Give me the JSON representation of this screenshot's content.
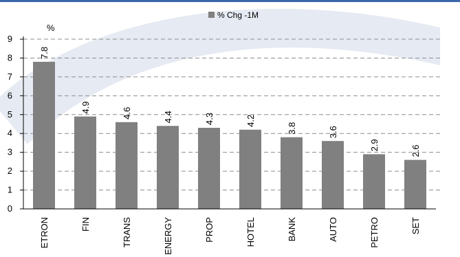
{
  "chart_data": {
    "type": "bar",
    "title": "",
    "xlabel": "",
    "ylabel": "%",
    "ylim": [
      0,
      9
    ],
    "yticks": [
      0,
      1,
      2,
      3,
      4,
      5,
      6,
      7,
      8,
      9
    ],
    "grid": true,
    "legend_position": "top-center",
    "categories": [
      "ETRON",
      "FIN",
      "TRANS",
      "ENERGY",
      "PROP",
      "HOTEL",
      "BANK",
      "AUTO",
      "PETRO",
      "SET"
    ],
    "series": [
      {
        "name": "% Chg -1M",
        "color": "#808080",
        "values": [
          7.8,
          4.9,
          4.6,
          4.4,
          4.3,
          4.2,
          3.8,
          3.6,
          2.9,
          2.6
        ],
        "labels": [
          "7.8",
          "4.9",
          "4.6",
          "4.4",
          "4.3",
          "4.2",
          "3.8",
          "3.6",
          "2.9",
          "2.6"
        ]
      }
    ]
  },
  "colors": {
    "bar": "#808080",
    "grid": "#8c8c8c",
    "axis": "#000000",
    "watermark": "#dde3ee",
    "header_rule": "#3a67a8"
  }
}
